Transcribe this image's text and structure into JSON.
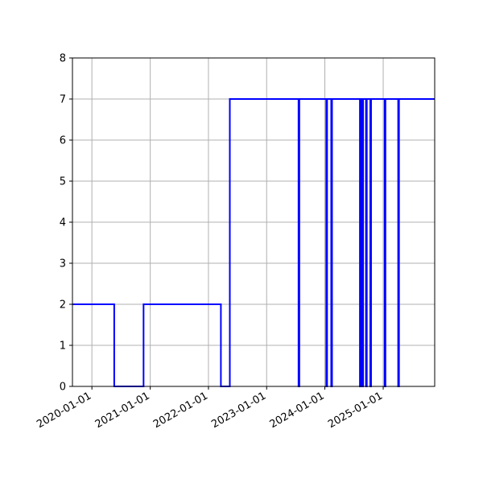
{
  "chart_data": {
    "type": "line",
    "step": true,
    "title": "",
    "xlabel": "",
    "ylabel": "",
    "x_axis_type": "date",
    "xlim": [
      "2019-09-01",
      "2025-11-20"
    ],
    "ylim": [
      0,
      8
    ],
    "grid": true,
    "legend": "none",
    "line_color": "#0000ff",
    "x_ticks": [
      "2020-01-01",
      "2021-01-01",
      "2022-01-01",
      "2023-01-01",
      "2024-01-01",
      "2025-01-01"
    ],
    "y_ticks": [
      0,
      1,
      2,
      3,
      4,
      5,
      6,
      7,
      8
    ],
    "series": [
      {
        "x": [
          "2019-09-01",
          "2020-05-20",
          "2020-11-20",
          "2022-03-20",
          "2022-05-15",
          "2023-07-20",
          "2023-07-25",
          "2024-01-10",
          "2024-01-15",
          "2024-02-10",
          "2024-02-15",
          "2024-08-08",
          "2024-08-14",
          "2024-08-22",
          "2024-08-28",
          "2024-09-15",
          "2024-09-20",
          "2024-10-12",
          "2024-10-17",
          "2025-01-10",
          "2025-01-15",
          "2025-04-05",
          "2025-04-10"
        ],
        "y": [
          2,
          0,
          2,
          0,
          7,
          0,
          7,
          0,
          7,
          0,
          7,
          0,
          7,
          0,
          7,
          0,
          7,
          0,
          7,
          0,
          7,
          0,
          7
        ]
      }
    ]
  }
}
